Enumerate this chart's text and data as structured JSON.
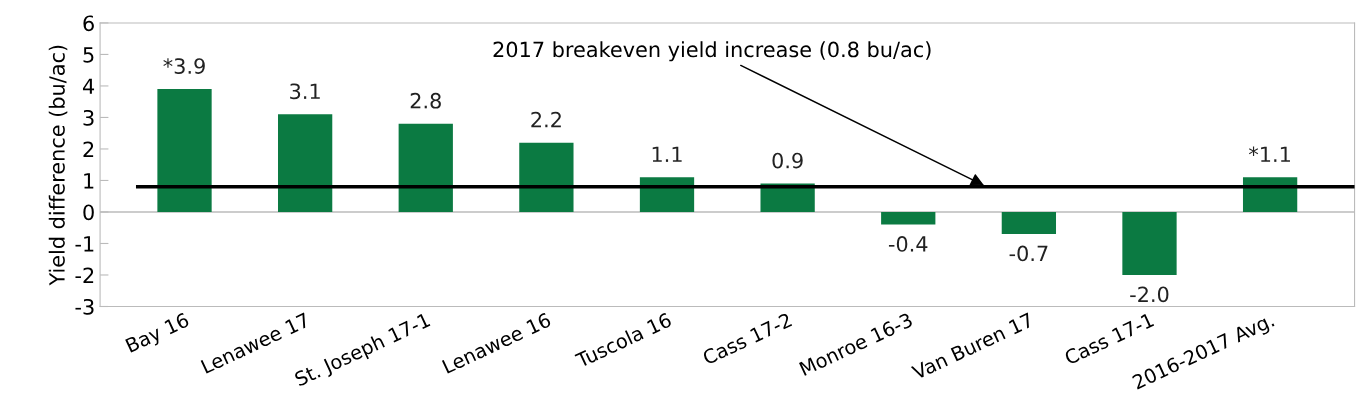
{
  "chart_data": {
    "type": "bar",
    "ylabel": "Yield difference (bu/ac)",
    "categories": [
      "Bay 16",
      "Lenawee 17",
      "St. Joseph 17-1",
      "Lenawee 16",
      "Tuscola 16",
      "Cass 17-2",
      "Monroe 16-3",
      "Van Buren 17",
      "Cass 17-1",
      "2016-2017 Avg."
    ],
    "series": [
      {
        "color": "#0b7a42",
        "values": [
          3.9,
          3.1,
          2.8,
          2.2,
          1.1,
          0.9,
          -0.4,
          -0.7,
          -2.0,
          1.1
        ],
        "value_labels": [
          "*3.9",
          "3.1",
          "2.8",
          "2.2",
          "1.1",
          "0.9",
          "-0.4",
          "-0.7",
          "-2.0",
          "*1.1"
        ]
      }
    ],
    "ylim": [
      -3,
      6
    ],
    "yticks": [
      -3,
      -2,
      -1,
      0,
      1,
      2,
      3,
      4,
      5,
      6
    ],
    "legend": false,
    "ref_lines": [
      {
        "axis": "y",
        "value": 0.8,
        "label": "2017 breakeven yield increase (0.8 bu/ac)",
        "color": "#000000",
        "line_style": "solid"
      }
    ]
  }
}
